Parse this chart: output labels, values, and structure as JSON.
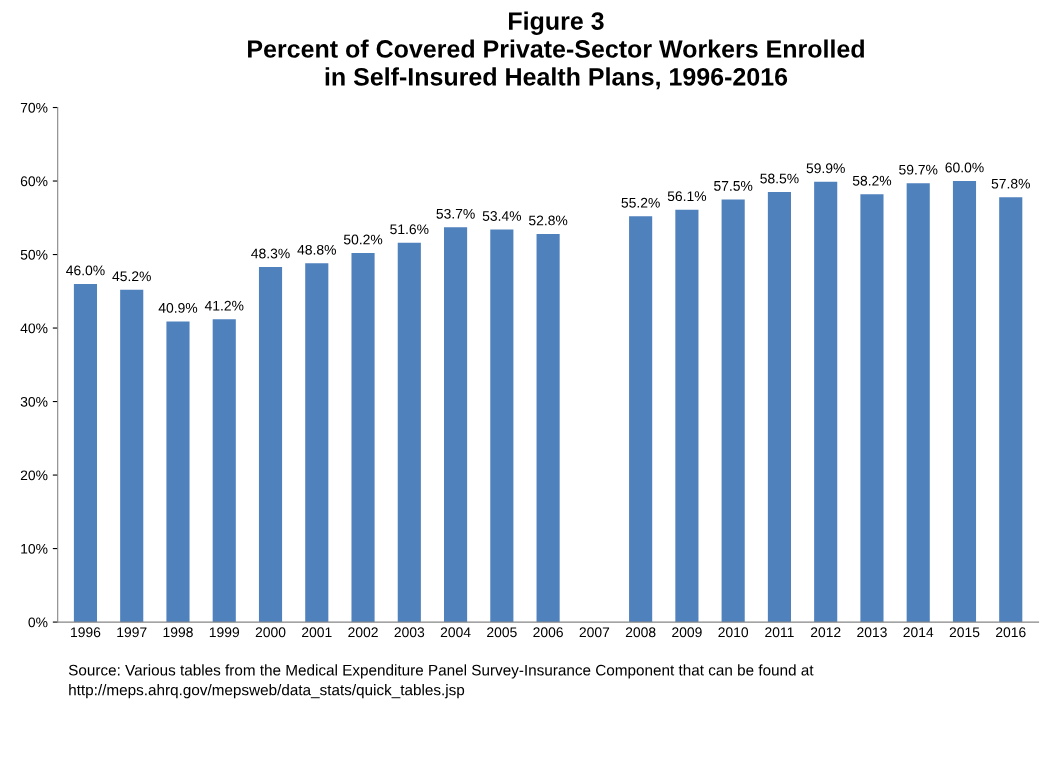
{
  "chart_data": {
    "type": "bar",
    "title": "Figure 3\nPercent of Covered Private-Sector Workers Enrolled\nin Self-Insured Health Plans, 1996-2016",
    "categories": [
      "1996",
      "1997",
      "1998",
      "1999",
      "2000",
      "2001",
      "2002",
      "2003",
      "2004",
      "2005",
      "2006",
      "2007",
      "2008",
      "2009",
      "2010",
      "2011",
      "2012",
      "2013",
      "2014",
      "2015",
      "2016"
    ],
    "values": [
      46.0,
      45.2,
      40.9,
      41.2,
      48.3,
      48.8,
      50.2,
      51.6,
      53.7,
      53.4,
      52.8,
      null,
      55.2,
      56.1,
      57.5,
      58.5,
      59.9,
      58.2,
      59.7,
      60.0,
      57.8
    ],
    "value_labels": [
      "46.0%",
      "45.2%",
      "40.9%",
      "41.2%",
      "48.3%",
      "48.8%",
      "50.2%",
      "51.6%",
      "53.7%",
      "53.4%",
      "52.8%",
      null,
      "55.2%",
      "56.1%",
      "57.5%",
      "58.5%",
      "59.9%",
      "58.2%",
      "59.7%",
      "60.0%",
      "57.8%"
    ],
    "color": "#4f81bd",
    "ylim": [
      0,
      70
    ],
    "yticks": [
      {
        "value": 0,
        "label": "0%"
      },
      {
        "value": 10,
        "label": "10%"
      },
      {
        "value": 20,
        "label": "20%"
      },
      {
        "value": 30,
        "label": "30%"
      },
      {
        "value": 40,
        "label": "40%"
      },
      {
        "value": 50,
        "label": "50%"
      },
      {
        "value": 60,
        "label": "60%"
      },
      {
        "value": 70,
        "label": "70%"
      }
    ],
    "grid": false,
    "legend": false,
    "annotations": [
      "Source: Various tables from the Medical Expenditure Panel Survey-Insurance Component that can be found at\nhttp://meps.ahrq.gov/mepsweb/data_stats/quick_tables.jsp"
    ]
  }
}
